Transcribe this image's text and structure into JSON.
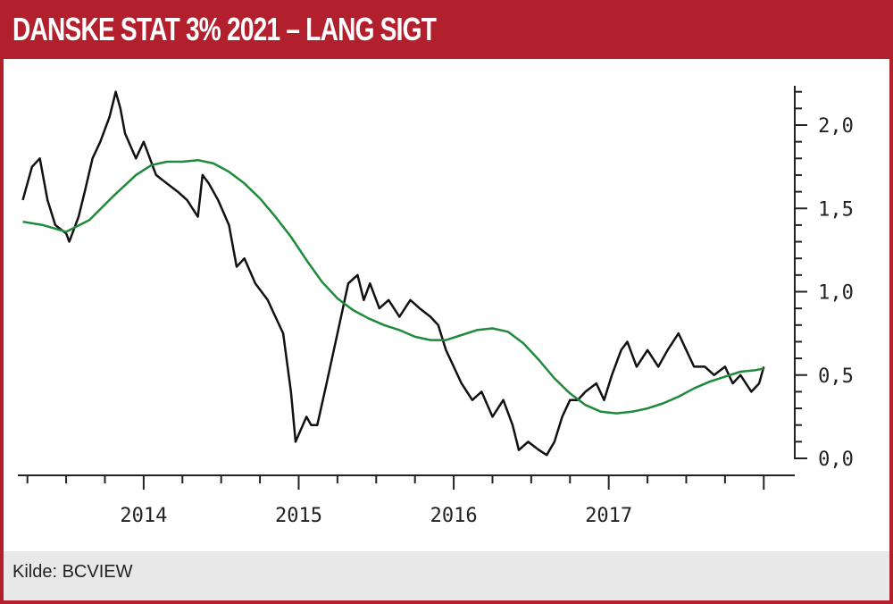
{
  "header": {
    "title": "DANSKE STAT 3% 2021 – LANG SIGT"
  },
  "footer": {
    "source": "Kilde: BCVIEW"
  },
  "chart_data": {
    "type": "line",
    "title": "DANSKE STAT 3% 2021 – LANG SIGT",
    "xlabel": "",
    "ylabel": "",
    "xlim": [
      2013.2,
      2018.2
    ],
    "ylim": [
      0.0,
      2.2
    ],
    "x_ticks": [
      "2014",
      "2015",
      "2016",
      "2017"
    ],
    "y_ticks": [
      "2,0",
      "1,5",
      "1,0",
      "0,5",
      "0,0"
    ],
    "y_tick_values": [
      2.0,
      1.5,
      1.0,
      0.5,
      0.0
    ],
    "y_axis_position": "right",
    "grid": false,
    "legend": "none",
    "series": [
      {
        "color": "#111111",
        "x": [
          2013.22,
          2013.28,
          2013.33,
          2013.38,
          2013.43,
          2013.5,
          2013.52,
          2013.58,
          2013.62,
          2013.67,
          2013.72,
          2013.78,
          2013.82,
          2013.85,
          2013.88,
          2013.95,
          2014.0,
          2014.08,
          2014.15,
          2014.22,
          2014.28,
          2014.35,
          2014.38,
          2014.42,
          2014.48,
          2014.55,
          2014.6,
          2014.65,
          2014.72,
          2014.8,
          2014.85,
          2014.9,
          2014.95,
          2014.98,
          2015.05,
          2015.08,
          2015.12,
          2015.18,
          2015.25,
          2015.32,
          2015.38,
          2015.42,
          2015.46,
          2015.52,
          2015.58,
          2015.65,
          2015.72,
          2015.78,
          2015.85,
          2015.9,
          2015.95,
          2016.0,
          2016.05,
          2016.12,
          2016.18,
          2016.25,
          2016.32,
          2016.38,
          2016.42,
          2016.48,
          2016.55,
          2016.6,
          2016.65,
          2016.7,
          2016.75,
          2016.8,
          2016.85,
          2016.92,
          2016.97,
          2017.02,
          2017.08,
          2017.12,
          2017.18,
          2017.25,
          2017.32,
          2017.38,
          2017.45,
          2017.5,
          2017.55,
          2017.62,
          2017.68,
          2017.75,
          2017.8,
          2017.85,
          2017.92,
          2017.97,
          2018.0
        ],
        "y": [
          1.55,
          1.75,
          1.8,
          1.55,
          1.4,
          1.35,
          1.3,
          1.45,
          1.6,
          1.8,
          1.9,
          2.05,
          2.2,
          2.1,
          1.95,
          1.8,
          1.9,
          1.7,
          1.65,
          1.6,
          1.55,
          1.45,
          1.7,
          1.65,
          1.55,
          1.4,
          1.15,
          1.2,
          1.05,
          0.95,
          0.85,
          0.75,
          0.4,
          0.1,
          0.25,
          0.2,
          0.2,
          0.45,
          0.75,
          1.05,
          1.1,
          0.95,
          1.05,
          0.9,
          0.95,
          0.85,
          0.95,
          0.9,
          0.85,
          0.8,
          0.65,
          0.55,
          0.45,
          0.35,
          0.4,
          0.25,
          0.35,
          0.2,
          0.05,
          0.1,
          0.05,
          0.02,
          0.1,
          0.25,
          0.35,
          0.35,
          0.4,
          0.45,
          0.35,
          0.5,
          0.65,
          0.7,
          0.55,
          0.65,
          0.55,
          0.65,
          0.75,
          0.65,
          0.55,
          0.55,
          0.5,
          0.55,
          0.45,
          0.5,
          0.4,
          0.45,
          0.55
        ]
      },
      {
        "color": "#1e8a3a",
        "x": [
          2013.22,
          2013.35,
          2013.5,
          2013.65,
          2013.8,
          2013.95,
          2014.05,
          2014.15,
          2014.25,
          2014.35,
          2014.45,
          2014.55,
          2014.65,
          2014.75,
          2014.85,
          2014.95,
          2015.05,
          2015.15,
          2015.25,
          2015.35,
          2015.45,
          2015.55,
          2015.65,
          2015.75,
          2015.85,
          2015.95,
          2016.05,
          2016.15,
          2016.25,
          2016.35,
          2016.45,
          2016.55,
          2016.65,
          2016.75,
          2016.85,
          2016.95,
          2017.05,
          2017.15,
          2017.25,
          2017.35,
          2017.45,
          2017.55,
          2017.65,
          2017.75,
          2017.85,
          2017.95,
          2018.0
        ],
        "y": [
          1.42,
          1.4,
          1.36,
          1.43,
          1.57,
          1.7,
          1.76,
          1.78,
          1.78,
          1.79,
          1.77,
          1.72,
          1.65,
          1.56,
          1.45,
          1.33,
          1.19,
          1.06,
          0.96,
          0.89,
          0.84,
          0.8,
          0.77,
          0.73,
          0.71,
          0.71,
          0.74,
          0.77,
          0.78,
          0.76,
          0.69,
          0.59,
          0.48,
          0.39,
          0.32,
          0.28,
          0.27,
          0.28,
          0.3,
          0.33,
          0.37,
          0.42,
          0.46,
          0.49,
          0.52,
          0.53,
          0.54
        ]
      }
    ]
  }
}
